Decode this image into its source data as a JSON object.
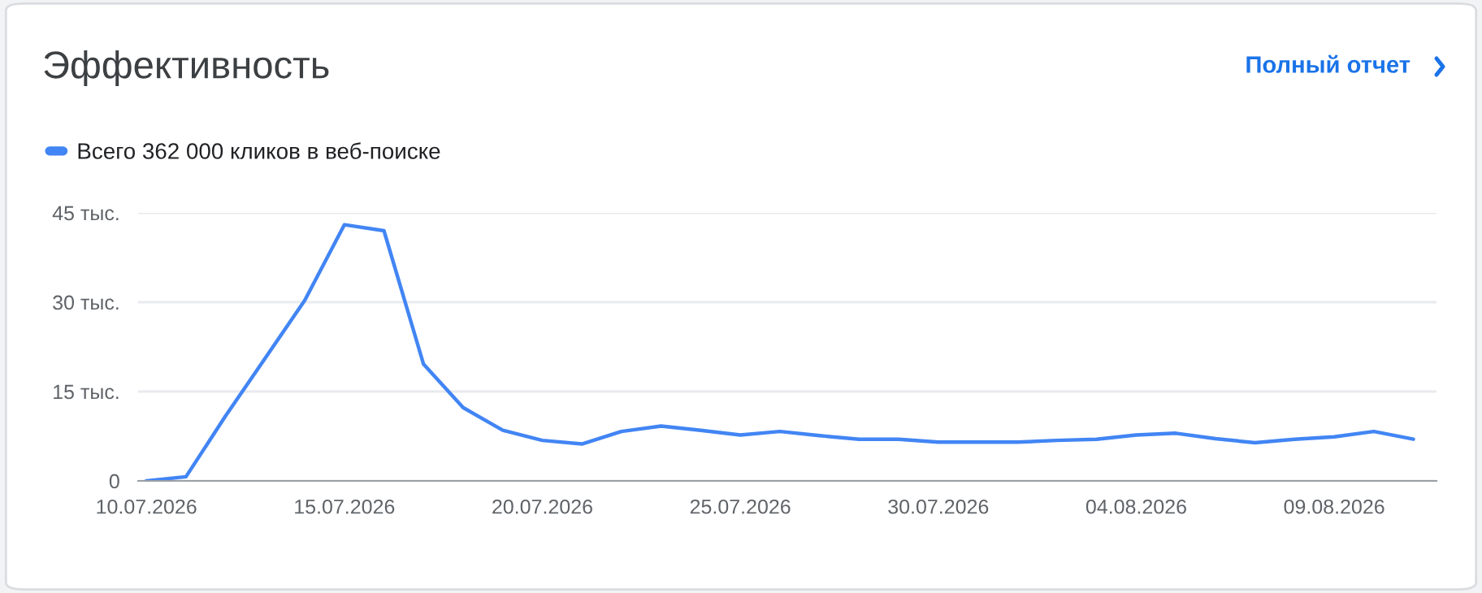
{
  "chart_data": {
    "type": "line",
    "title": "Эффективность",
    "annotations": [
      "Полный отчет"
    ],
    "x": [
      "2026-07-10",
      "2026-07-11",
      "2026-07-12",
      "2026-07-13",
      "2026-07-14",
      "2026-07-15",
      "2026-07-16",
      "2026-07-17",
      "2026-07-18",
      "2026-07-19",
      "2026-07-20",
      "2026-07-21",
      "2026-07-22",
      "2026-07-23",
      "2026-07-24",
      "2026-07-25",
      "2026-07-26",
      "2026-07-27",
      "2026-07-28",
      "2026-07-29",
      "2026-07-30",
      "2026-07-31",
      "2026-08-01",
      "2026-08-02",
      "2026-08-03",
      "2026-08-04",
      "2026-08-05",
      "2026-08-06",
      "2026-08-07",
      "2026-08-08",
      "2026-08-09",
      "2026-08-10",
      "2026-08-11"
    ],
    "series": [
      {
        "name": "Всего 362 000 кликов в веб-поиске",
        "color": "#4285f4",
        "values": [
          0,
          0.7,
          10.9,
          20.6,
          30.3,
          43,
          42,
          19.6,
          12.3,
          8.5,
          6.8,
          6.2,
          8.3,
          9.2,
          8.5,
          7.7,
          8.3,
          7.6,
          7,
          7,
          6.5,
          6.5,
          6.5,
          6.8,
          7,
          7.7,
          8,
          7.1,
          6.4,
          7,
          7.4,
          8.3,
          7
        ]
      }
    ],
    "xlim": [
      "2026-07-09T19:00",
      "2026-08-11T14:00"
    ],
    "xticks": [
      {
        "value": "2026-07-10",
        "label": "10.07.2026"
      },
      {
        "value": "2026-07-15",
        "label": "15.07.2026"
      },
      {
        "value": "2026-07-20",
        "label": "20.07.2026"
      },
      {
        "value": "2026-07-25",
        "label": "25.07.2026"
      },
      {
        "value": "2026-07-30",
        "label": "30.07.2026"
      },
      {
        "value": "2026-08-04",
        "label": "04.08.2026"
      },
      {
        "value": "2026-08-09",
        "label": "09.08.2026"
      }
    ],
    "ylim": [
      0,
      45
    ],
    "yticks": [
      {
        "value": 0,
        "label": "0"
      },
      {
        "value": 15,
        "label": "15 тыс."
      },
      {
        "value": 30,
        "label": "30 тыс."
      },
      {
        "value": 45,
        "label": "45 тыс."
      }
    ],
    "grid": "y",
    "legend": "top left",
    "marker": "none",
    "line_style": "solid"
  }
}
